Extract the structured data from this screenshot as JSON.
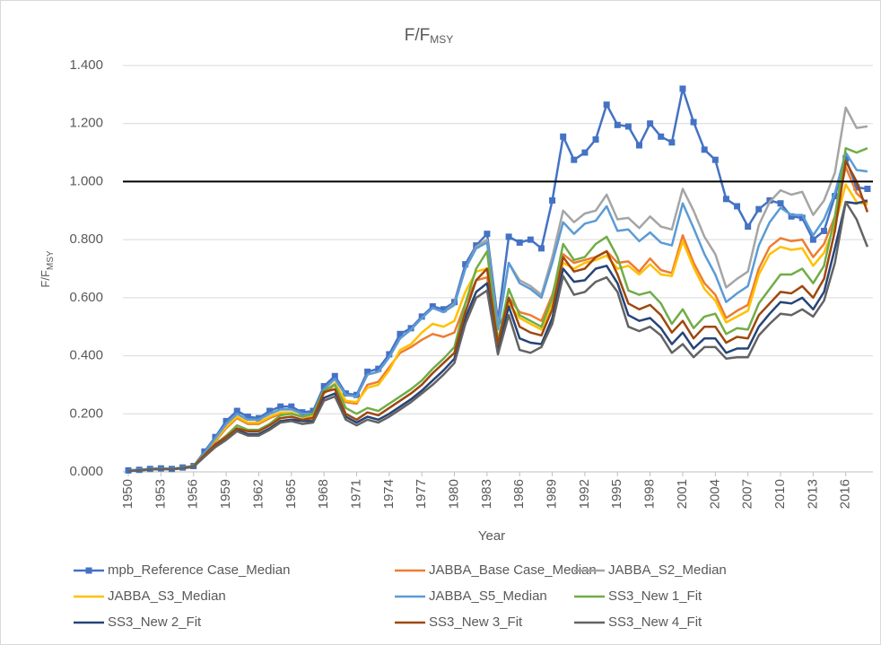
{
  "chart_data": {
    "type": "line",
    "title": "F/F",
    "title_sub": "MSY",
    "y_label": "F/F",
    "y_label_sub": "MSY",
    "x_label": "Year",
    "x": [
      1950,
      1951,
      1952,
      1953,
      1954,
      1955,
      1956,
      1957,
      1958,
      1959,
      1960,
      1961,
      1962,
      1963,
      1964,
      1965,
      1966,
      1967,
      1968,
      1969,
      1970,
      1971,
      1972,
      1973,
      1974,
      1975,
      1976,
      1977,
      1978,
      1979,
      1980,
      1981,
      1982,
      1983,
      1984,
      1985,
      1986,
      1987,
      1988,
      1989,
      1990,
      1991,
      1992,
      1993,
      1994,
      1995,
      1996,
      1997,
      1998,
      1999,
      2000,
      2001,
      2002,
      2003,
      2004,
      2005,
      2006,
      2007,
      2008,
      2009,
      2010,
      2011,
      2012,
      2013,
      2014,
      2015,
      2016,
      2017,
      2018
    ],
    "xlim": [
      1949.5,
      2018.5
    ],
    "xticks": [
      1950,
      1953,
      1956,
      1959,
      1962,
      1965,
      1968,
      1971,
      1974,
      1977,
      1980,
      1983,
      1986,
      1989,
      1992,
      1995,
      1998,
      2001,
      2004,
      2007,
      2010,
      2013,
      2016
    ],
    "ylim": [
      0,
      1.4
    ],
    "yticks": [
      {
        "value": 0,
        "label": "0.000"
      },
      {
        "value": 0.2,
        "label": "0.200"
      },
      {
        "value": 0.4,
        "label": "0.400"
      },
      {
        "value": 0.6,
        "label": "0.600"
      },
      {
        "value": 0.8,
        "label": "0.800"
      },
      {
        "value": 1.0,
        "label": "1.000"
      },
      {
        "value": 1.2,
        "label": "1.200"
      },
      {
        "value": 1.4,
        "label": "1.400"
      }
    ],
    "reference_line": 1.0,
    "grid": true,
    "legend": "bottom",
    "series": [
      {
        "name": "mpb_Reference Case_Median",
        "color": "#4472c4",
        "marker": "square",
        "values": [
          0.005,
          0.007,
          0.01,
          0.012,
          0.01,
          0.015,
          0.02,
          0.07,
          0.12,
          0.175,
          0.21,
          0.19,
          0.185,
          0.21,
          0.225,
          0.225,
          0.205,
          0.21,
          0.295,
          0.33,
          0.27,
          0.265,
          0.345,
          0.355,
          0.405,
          0.475,
          0.495,
          0.535,
          0.57,
          0.56,
          0.585,
          0.715,
          0.78,
          0.82,
          0.52,
          0.81,
          0.79,
          0.8,
          0.77,
          0.935,
          1.155,
          1.075,
          1.1,
          1.145,
          1.265,
          1.195,
          1.19,
          1.125,
          1.2,
          1.155,
          1.135,
          1.32,
          1.205,
          1.11,
          1.075,
          0.94,
          0.915,
          0.845,
          0.905,
          0.935,
          0.925,
          0.88,
          0.875,
          0.8,
          0.83,
          0.95,
          1.08,
          0.98,
          0.975
        ]
      },
      {
        "name": "JABBA_Base Case_Median",
        "color": "#ed7d31",
        "values": [
          0.004,
          0.006,
          0.009,
          0.011,
          0.01,
          0.014,
          0.02,
          0.065,
          0.105,
          0.15,
          0.185,
          0.165,
          0.165,
          0.185,
          0.2,
          0.2,
          0.19,
          0.19,
          0.27,
          0.3,
          0.24,
          0.235,
          0.3,
          0.31,
          0.36,
          0.41,
          0.43,
          0.455,
          0.475,
          0.465,
          0.48,
          0.58,
          0.66,
          0.67,
          0.44,
          0.6,
          0.55,
          0.54,
          0.52,
          0.61,
          0.75,
          0.72,
          0.73,
          0.74,
          0.76,
          0.72,
          0.725,
          0.69,
          0.735,
          0.695,
          0.685,
          0.815,
          0.72,
          0.65,
          0.61,
          0.53,
          0.555,
          0.575,
          0.7,
          0.775,
          0.805,
          0.795,
          0.8,
          0.74,
          0.785,
          0.88,
          1.05,
          0.96,
          0.925
        ]
      },
      {
        "name": "JABBA_S2_Median",
        "color": "#a5a5a5",
        "values": [
          0.005,
          0.007,
          0.01,
          0.012,
          0.01,
          0.015,
          0.02,
          0.065,
          0.115,
          0.165,
          0.2,
          0.18,
          0.18,
          0.2,
          0.215,
          0.215,
          0.2,
          0.2,
          0.285,
          0.32,
          0.265,
          0.26,
          0.335,
          0.345,
          0.395,
          0.46,
          0.49,
          0.53,
          0.565,
          0.55,
          0.58,
          0.7,
          0.775,
          0.8,
          0.5,
          0.72,
          0.66,
          0.64,
          0.61,
          0.74,
          0.9,
          0.86,
          0.89,
          0.9,
          0.955,
          0.87,
          0.875,
          0.84,
          0.88,
          0.845,
          0.835,
          0.975,
          0.9,
          0.81,
          0.75,
          0.635,
          0.665,
          0.69,
          0.85,
          0.93,
          0.97,
          0.955,
          0.965,
          0.885,
          0.935,
          1.03,
          1.255,
          1.185,
          1.19
        ]
      },
      {
        "name": "JABBA_S3_Median",
        "color": "#ffc000",
        "values": [
          0.004,
          0.006,
          0.009,
          0.011,
          0.01,
          0.014,
          0.02,
          0.065,
          0.11,
          0.155,
          0.19,
          0.17,
          0.17,
          0.19,
          0.205,
          0.205,
          0.19,
          0.195,
          0.275,
          0.305,
          0.245,
          0.24,
          0.29,
          0.3,
          0.35,
          0.42,
          0.44,
          0.48,
          0.51,
          0.5,
          0.52,
          0.62,
          0.69,
          0.7,
          0.43,
          0.58,
          0.53,
          0.51,
          0.49,
          0.58,
          0.72,
          0.7,
          0.72,
          0.73,
          0.745,
          0.7,
          0.71,
          0.68,
          0.715,
          0.68,
          0.675,
          0.795,
          0.705,
          0.63,
          0.59,
          0.515,
          0.535,
          0.555,
          0.68,
          0.75,
          0.775,
          0.765,
          0.77,
          0.71,
          0.755,
          0.85,
          0.99,
          0.93,
          0.92
        ]
      },
      {
        "name": "JABBA_S5_Median",
        "color": "#5b9bd5",
        "values": [
          0.005,
          0.007,
          0.01,
          0.012,
          0.01,
          0.015,
          0.02,
          0.065,
          0.115,
          0.165,
          0.2,
          0.18,
          0.18,
          0.2,
          0.215,
          0.215,
          0.2,
          0.2,
          0.285,
          0.32,
          0.265,
          0.26,
          0.335,
          0.345,
          0.395,
          0.46,
          0.49,
          0.53,
          0.565,
          0.55,
          0.575,
          0.7,
          0.77,
          0.79,
          0.49,
          0.72,
          0.65,
          0.63,
          0.6,
          0.72,
          0.86,
          0.82,
          0.855,
          0.865,
          0.915,
          0.83,
          0.835,
          0.795,
          0.825,
          0.79,
          0.78,
          0.925,
          0.84,
          0.75,
          0.68,
          0.585,
          0.615,
          0.64,
          0.78,
          0.86,
          0.91,
          0.885,
          0.885,
          0.815,
          0.87,
          0.96,
          1.1,
          1.04,
          1.035
        ]
      },
      {
        "name": "SS3_New 1_Fit",
        "color": "#70ad47",
        "values": [
          0.004,
          0.006,
          0.009,
          0.011,
          0.01,
          0.014,
          0.02,
          0.06,
          0.095,
          0.125,
          0.16,
          0.145,
          0.145,
          0.165,
          0.195,
          0.2,
          0.19,
          0.2,
          0.28,
          0.3,
          0.22,
          0.2,
          0.22,
          0.21,
          0.235,
          0.26,
          0.285,
          0.315,
          0.355,
          0.39,
          0.43,
          0.58,
          0.7,
          0.76,
          0.45,
          0.63,
          0.54,
          0.52,
          0.5,
          0.6,
          0.785,
          0.73,
          0.74,
          0.785,
          0.81,
          0.74,
          0.625,
          0.61,
          0.62,
          0.58,
          0.51,
          0.56,
          0.495,
          0.535,
          0.545,
          0.475,
          0.495,
          0.49,
          0.58,
          0.63,
          0.68,
          0.68,
          0.7,
          0.65,
          0.71,
          0.88,
          1.115,
          1.1,
          1.115
        ]
      },
      {
        "name": "SS3_New 2_Fit",
        "color": "#264478",
        "values": [
          0.003,
          0.005,
          0.008,
          0.01,
          0.009,
          0.013,
          0.018,
          0.055,
          0.09,
          0.115,
          0.145,
          0.13,
          0.13,
          0.15,
          0.175,
          0.18,
          0.175,
          0.175,
          0.255,
          0.27,
          0.19,
          0.17,
          0.19,
          0.18,
          0.2,
          0.225,
          0.25,
          0.28,
          0.315,
          0.35,
          0.39,
          0.53,
          0.62,
          0.65,
          0.42,
          0.57,
          0.46,
          0.445,
          0.44,
          0.53,
          0.7,
          0.655,
          0.66,
          0.7,
          0.71,
          0.65,
          0.54,
          0.52,
          0.53,
          0.495,
          0.44,
          0.48,
          0.425,
          0.46,
          0.46,
          0.41,
          0.425,
          0.425,
          0.5,
          0.545,
          0.585,
          0.58,
          0.6,
          0.56,
          0.62,
          0.77,
          0.93,
          0.925,
          0.935
        ]
      },
      {
        "name": "SS3_New 3_Fit",
        "color": "#9e480e",
        "values": [
          0.003,
          0.005,
          0.008,
          0.01,
          0.009,
          0.013,
          0.019,
          0.058,
          0.095,
          0.12,
          0.15,
          0.14,
          0.14,
          0.16,
          0.185,
          0.19,
          0.18,
          0.185,
          0.275,
          0.285,
          0.2,
          0.18,
          0.205,
          0.195,
          0.22,
          0.245,
          0.27,
          0.3,
          0.34,
          0.375,
          0.41,
          0.55,
          0.66,
          0.7,
          0.44,
          0.6,
          0.5,
          0.48,
          0.47,
          0.56,
          0.74,
          0.69,
          0.7,
          0.74,
          0.76,
          0.68,
          0.58,
          0.56,
          0.575,
          0.54,
          0.48,
          0.52,
          0.46,
          0.5,
          0.5,
          0.445,
          0.465,
          0.46,
          0.54,
          0.58,
          0.62,
          0.615,
          0.64,
          0.6,
          0.665,
          0.83,
          1.07,
          1.0,
          0.895
        ]
      },
      {
        "name": "SS3_New 4_Fit",
        "color": "#636363",
        "values": [
          0.003,
          0.005,
          0.008,
          0.01,
          0.009,
          0.012,
          0.017,
          0.052,
          0.085,
          0.11,
          0.14,
          0.125,
          0.125,
          0.145,
          0.17,
          0.175,
          0.165,
          0.17,
          0.245,
          0.26,
          0.18,
          0.16,
          0.18,
          0.17,
          0.19,
          0.215,
          0.24,
          0.27,
          0.3,
          0.335,
          0.375,
          0.51,
          0.6,
          0.625,
          0.405,
          0.54,
          0.42,
          0.41,
          0.43,
          0.51,
          0.675,
          0.61,
          0.62,
          0.655,
          0.67,
          0.62,
          0.5,
          0.485,
          0.5,
          0.47,
          0.41,
          0.44,
          0.395,
          0.43,
          0.43,
          0.39,
          0.395,
          0.395,
          0.47,
          0.51,
          0.545,
          0.54,
          0.56,
          0.535,
          0.59,
          0.72,
          0.93,
          0.87,
          0.775
        ]
      }
    ]
  }
}
